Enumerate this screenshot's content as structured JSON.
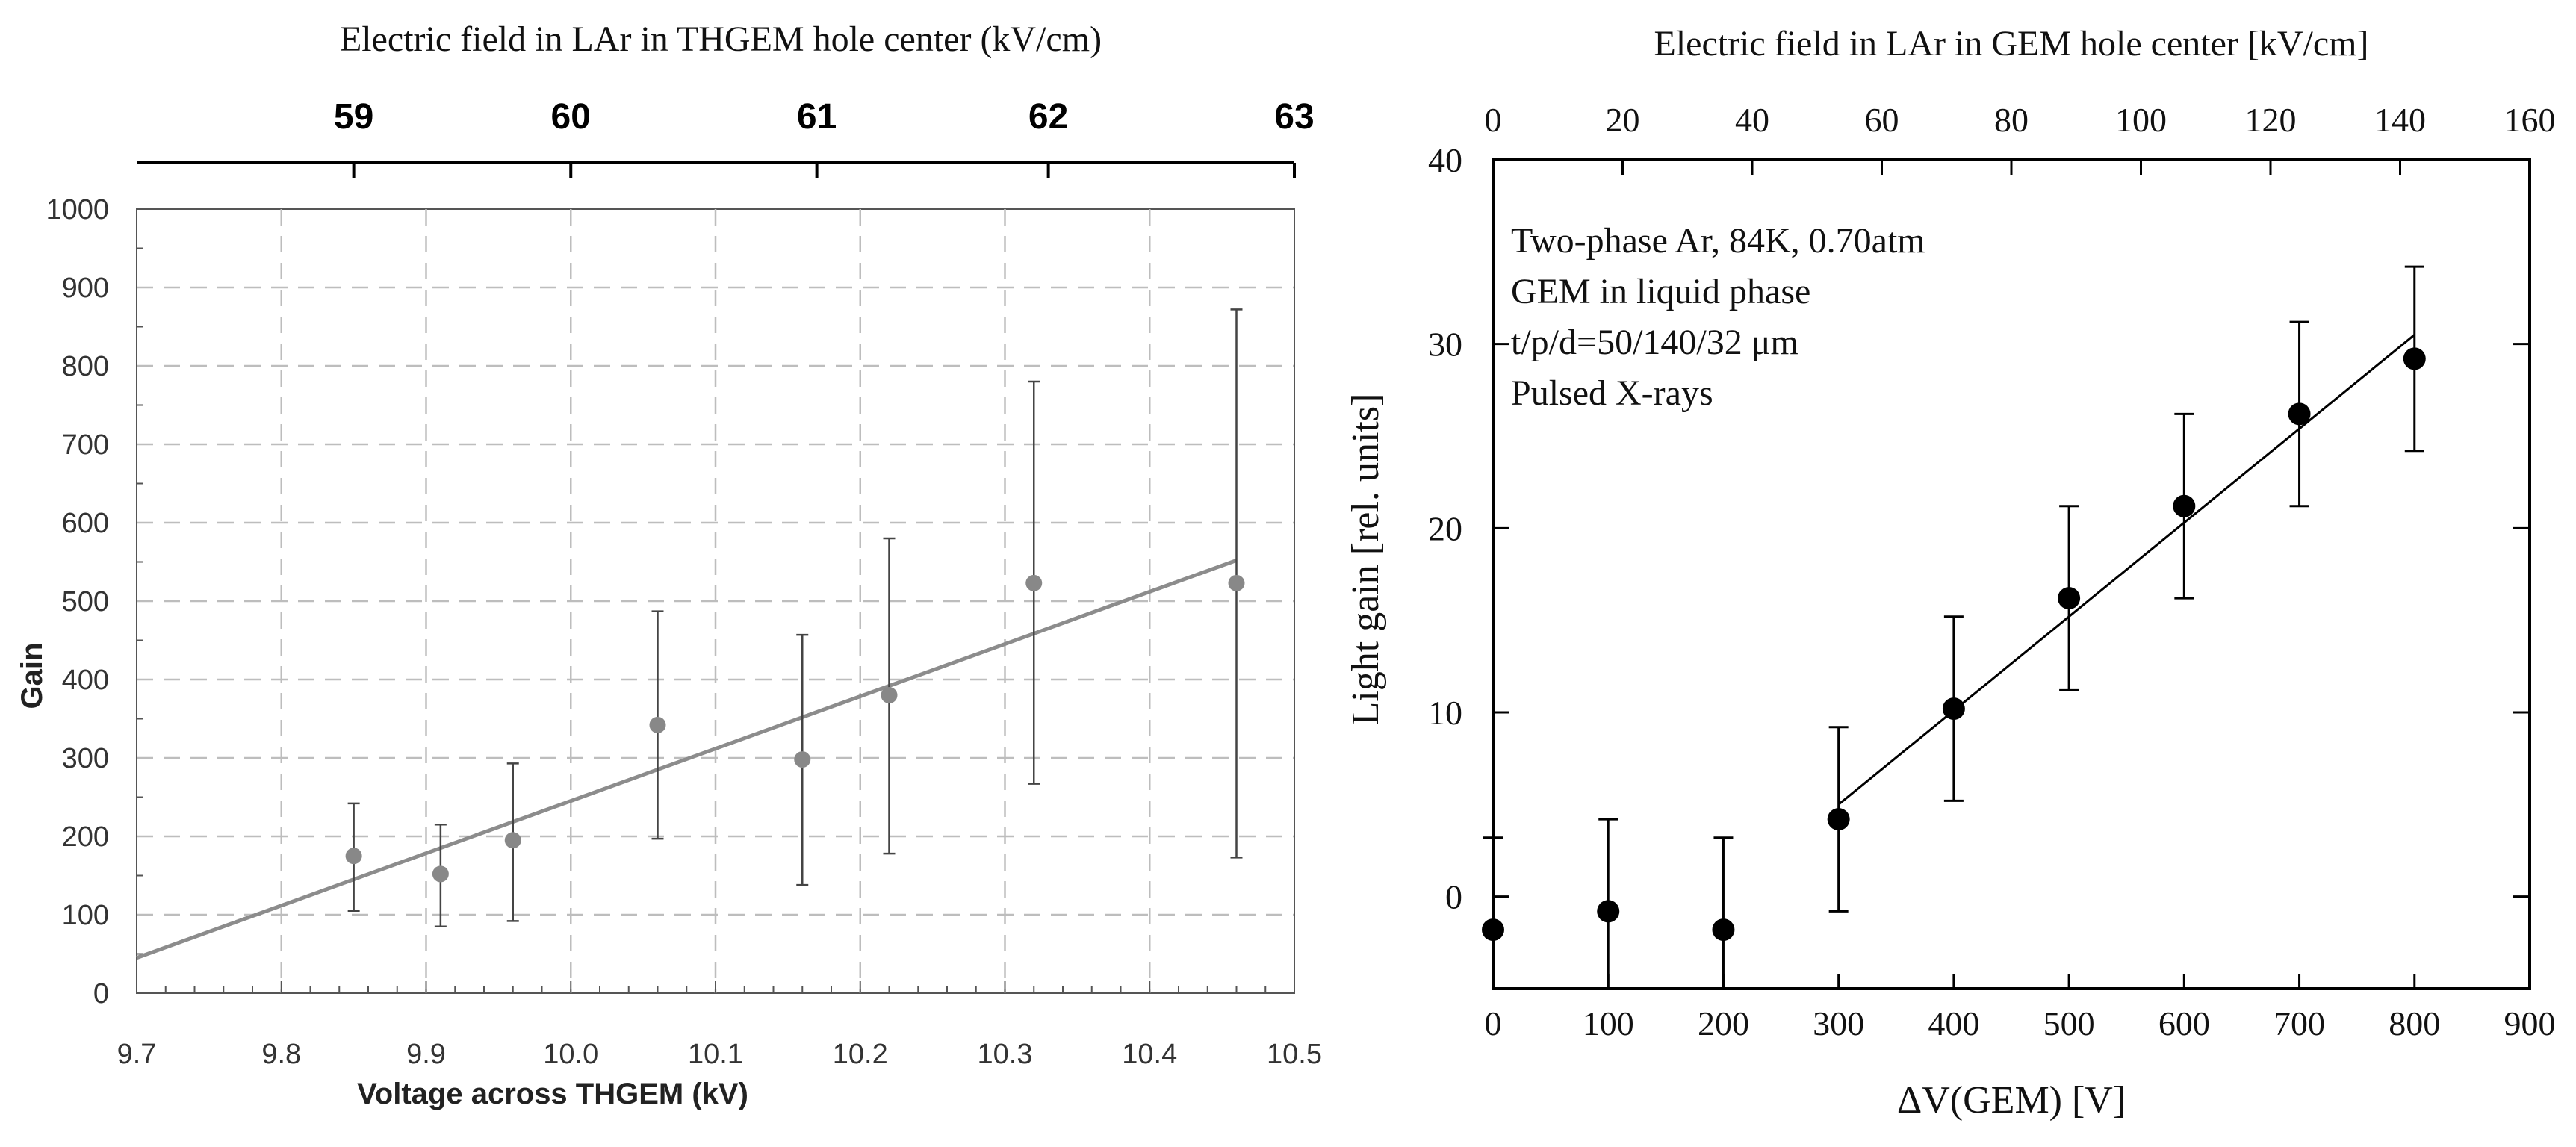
{
  "chart_data": [
    {
      "type": "scatter",
      "title": "Electric field in LAr in THGEM hole center (kV/cm)",
      "xlabel": "Voltage across THGEM (kV)",
      "ylabel": "Gain",
      "xlim": [
        9.7,
        10.5
      ],
      "ylim": [
        0,
        1000
      ],
      "grid": true,
      "x_ticks": [
        "9.7",
        "9.8",
        "9.9",
        "10.0",
        "10.1",
        "10.2",
        "10.3",
        "10.4",
        "10.5"
      ],
      "y_ticks": [
        "0",
        "100",
        "200",
        "300",
        "400",
        "500",
        "600",
        "700",
        "800",
        "900",
        "1000"
      ],
      "top_axis": {
        "ticks": [
          {
            "label": "59",
            "at": 9.85
          },
          {
            "label": "60",
            "at": 10.0
          },
          {
            "label": "61",
            "at": 10.17
          },
          {
            "label": "62",
            "at": 10.33
          },
          {
            "label": "63",
            "at": 10.5
          }
        ]
      },
      "series": [
        {
          "name": "data",
          "points": [
            {
              "x": 9.85,
              "y": 175,
              "lo": 105,
              "hi": 242
            },
            {
              "x": 9.91,
              "y": 152,
              "lo": 85,
              "hi": 215
            },
            {
              "x": 9.96,
              "y": 195,
              "lo": 92,
              "hi": 293
            },
            {
              "x": 10.06,
              "y": 342,
              "lo": 197,
              "hi": 487
            },
            {
              "x": 10.16,
              "y": 298,
              "lo": 138,
              "hi": 457
            },
            {
              "x": 10.22,
              "y": 380,
              "lo": 178,
              "hi": 580
            },
            {
              "x": 10.32,
              "y": 523,
              "lo": 267,
              "hi": 780
            },
            {
              "x": 10.46,
              "y": 523,
              "lo": 173,
              "hi": 872
            }
          ]
        }
      ],
      "fit": {
        "x1": 9.7,
        "y1": 45,
        "x2": 10.46,
        "y2": 552
      }
    },
    {
      "type": "scatter",
      "title": "Electric field in LAr in GEM hole center [kV/cm]",
      "xlabel": "ΔV(GEM) [V]",
      "ylabel": "Light gain [rel. units]",
      "xlim": [
        0,
        900
      ],
      "ylim": [
        -5,
        40
      ],
      "grid": false,
      "x_ticks": [
        "0",
        "100",
        "200",
        "300",
        "400",
        "500",
        "600",
        "700",
        "800",
        "900"
      ],
      "y_ticks": [
        "0",
        "10",
        "20",
        "30",
        "40"
      ],
      "top_axis": {
        "ticks": [
          {
            "label": "0",
            "at": 0
          },
          {
            "label": "20",
            "at": 112.5
          },
          {
            "label": "40",
            "at": 225
          },
          {
            "label": "60",
            "at": 337.5
          },
          {
            "label": "80",
            "at": 450
          },
          {
            "label": "100",
            "at": 562.5
          },
          {
            "label": "120",
            "at": 675
          },
          {
            "label": "140",
            "at": 787.5
          },
          {
            "label": "160",
            "at": 900
          }
        ]
      },
      "annotations": [
        "Two-phase Ar, 84K, 0.70atm",
        "GEM in liquid  phase",
        "t/p/d=50/140/32 μm",
        "Pulsed X-rays"
      ],
      "series": [
        {
          "name": "data",
          "points": [
            {
              "x": 0,
              "y": -1.8,
              "lo": -5,
              "hi": 3.2
            },
            {
              "x": 100,
              "y": -0.8,
              "lo": -5,
              "hi": 4.2
            },
            {
              "x": 200,
              "y": -1.8,
              "lo": -5,
              "hi": 3.2
            },
            {
              "x": 300,
              "y": 4.2,
              "lo": -0.8,
              "hi": 9.2
            },
            {
              "x": 400,
              "y": 10.2,
              "lo": 5.2,
              "hi": 15.2
            },
            {
              "x": 500,
              "y": 16.2,
              "lo": 11.2,
              "hi": 21.2
            },
            {
              "x": 600,
              "y": 21.2,
              "lo": 16.2,
              "hi": 26.2
            },
            {
              "x": 700,
              "y": 26.2,
              "lo": 21.2,
              "hi": 31.2
            },
            {
              "x": 800,
              "y": 29.2,
              "lo": 24.2,
              "hi": 34.2
            }
          ]
        }
      ],
      "fit": {
        "x1": 300,
        "y1": 5,
        "x2": 800,
        "y2": 30.5
      }
    }
  ]
}
